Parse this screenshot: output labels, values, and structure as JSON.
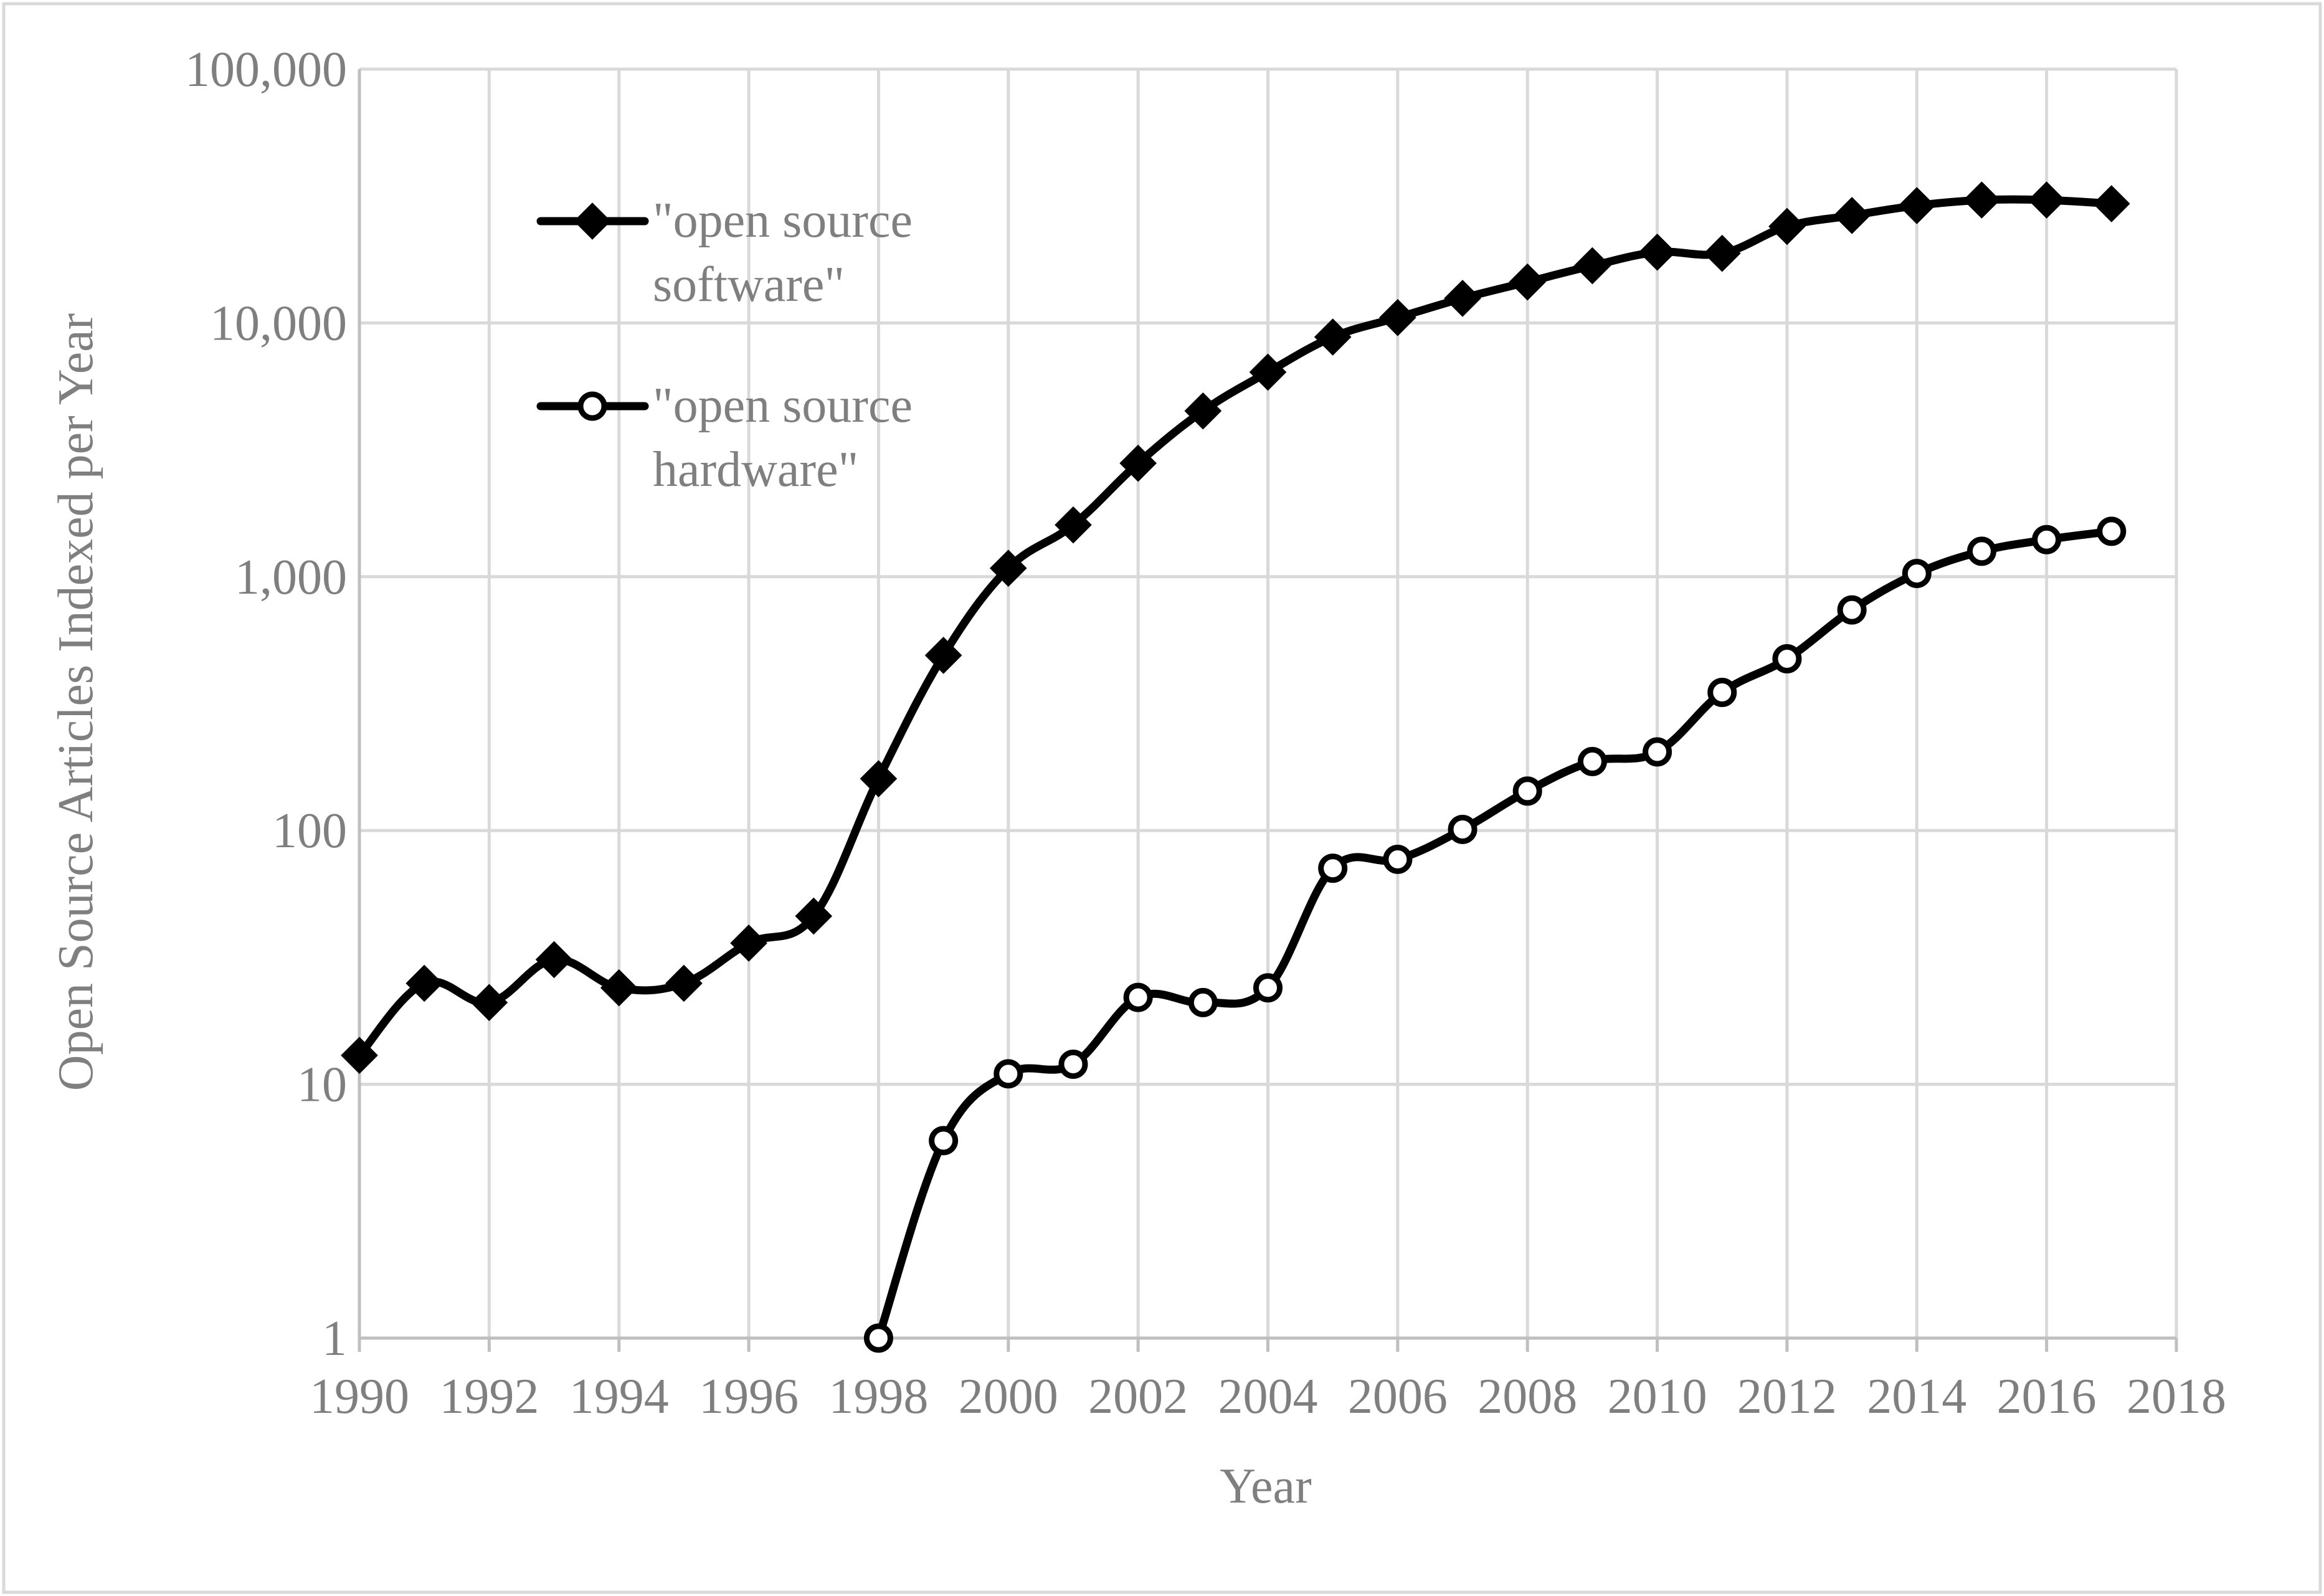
{
  "chart_data": {
    "type": "line",
    "title": "",
    "xlabel": "Year",
    "ylabel": "Open Source Articles Indexed per Year",
    "y_scale": "log",
    "xlim": [
      1990,
      2018
    ],
    "ylim": [
      1,
      100000
    ],
    "x_ticks": [
      "1990",
      "1992",
      "1994",
      "1996",
      "1998",
      "2000",
      "2002",
      "2004",
      "2006",
      "2008",
      "2010",
      "2012",
      "2014",
      "2016",
      "2018"
    ],
    "y_ticks": [
      {
        "value": 1,
        "label": "1"
      },
      {
        "value": 10,
        "label": "10"
      },
      {
        "value": 100,
        "label": "100"
      },
      {
        "value": 1000,
        "label": "1,000"
      },
      {
        "value": 10000,
        "label": "10,000"
      },
      {
        "value": 100000,
        "label": "100,000"
      }
    ],
    "grid": true,
    "legend_position": "top-left",
    "series": [
      {
        "name": "\"open source software\"",
        "legend_lines": [
          "\"open source",
          "software\""
        ],
        "marker": "diamond",
        "color": "#000000",
        "x": [
          1990,
          1991,
          1992,
          1993,
          1994,
          1995,
          1996,
          1997,
          1998,
          1999,
          2000,
          2001,
          2002,
          2003,
          2004,
          2005,
          2006,
          2007,
          2008,
          2009,
          2010,
          2011,
          2012,
          2013,
          2014,
          2015,
          2016,
          2017
        ],
        "values": [
          13,
          25,
          21,
          31,
          24,
          25,
          36,
          46,
          160,
          490,
          1080,
          1600,
          2800,
          4500,
          6400,
          8800,
          10500,
          12500,
          14500,
          16800,
          19000,
          18800,
          24000,
          26500,
          29000,
          30500,
          30500,
          29500
        ]
      },
      {
        "name": "\"open source hardware\"",
        "legend_lines": [
          "\"open source",
          "hardware\""
        ],
        "marker": "circle-open",
        "color": "#000000",
        "x": [
          1998,
          1999,
          2000,
          2001,
          2002,
          2003,
          2004,
          2005,
          2006,
          2007,
          2008,
          2009,
          2010,
          2011,
          2012,
          2013,
          2014,
          2015,
          2016,
          2017
        ],
        "values": [
          1,
          6,
          11,
          12,
          22,
          21,
          24,
          71,
          77,
          101,
          143,
          187,
          204,
          350,
          475,
          740,
          1030,
          1260,
          1400,
          1510
        ]
      }
    ]
  }
}
